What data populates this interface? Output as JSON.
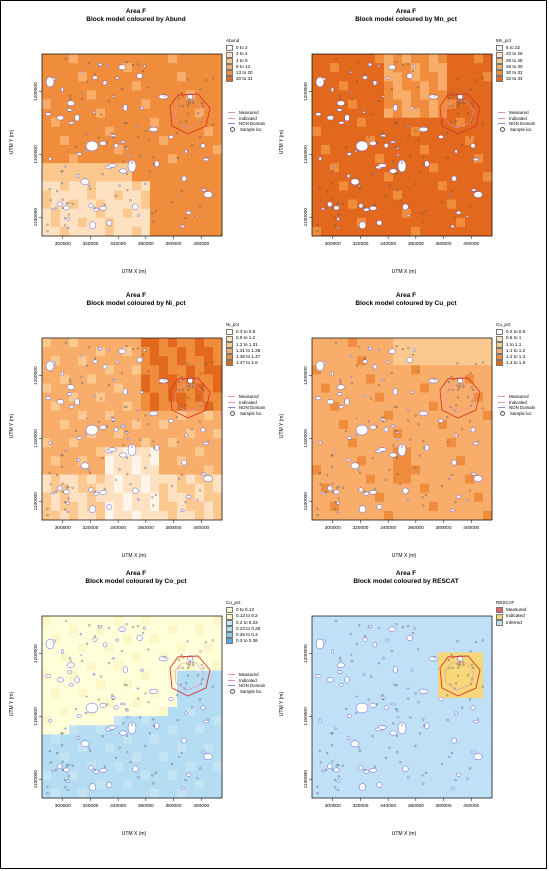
{
  "figure": {
    "area_title": "Area F",
    "overlay_legend": [
      {
        "label": "Measured",
        "kind": "line",
        "color": "#e98fb1"
      },
      {
        "label": "Indicated",
        "kind": "line",
        "color": "#e98fb1"
      },
      {
        "label": "NON Domain",
        "kind": "line",
        "color": "#8a8ad8"
      },
      {
        "label": "Sample loc",
        "kind": "point",
        "color": "#555555"
      }
    ]
  },
  "chart_data": [
    {
      "type": "heatmap",
      "title": "Area F",
      "subtitle": "Block model coloured by Abund",
      "xlabel": "UTM X (m)",
      "ylabel": "UTM Y (m)",
      "xticks": [
        "300000",
        "320000",
        "340000",
        "360000",
        "380000",
        "400000"
      ],
      "yticks": [
        "1100000",
        "1150000",
        "1200000"
      ],
      "legend_title": "Abund",
      "legend_position": "right",
      "classes": [
        {
          "label": "0 to 2",
          "color": "#fff5eb"
        },
        {
          "label": "2 to 4",
          "color": "#fde1c1"
        },
        {
          "label": "4 to 8",
          "color": "#fbc98f"
        },
        {
          "label": "8 to 13",
          "color": "#f8ad6b"
        },
        {
          "label": "13 to 20",
          "color": "#f08d3c"
        },
        {
          "label": "20 to 31",
          "color": "#e1681d"
        }
      ],
      "show_overlay_legend": true,
      "show_points": true
    },
    {
      "type": "heatmap",
      "title": "Area F",
      "subtitle": "Block model coloured by Mn_pct",
      "xlabel": "UTM X (m)",
      "ylabel": "UTM Y (m)",
      "xticks": [
        "300000",
        "320000",
        "340000",
        "360000",
        "380000",
        "400000"
      ],
      "yticks": [
        "1100000",
        "1150000",
        "1200000"
      ],
      "legend_title": "Mn_pct",
      "legend_position": "right",
      "classes": [
        {
          "label": "6 to 22",
          "color": "#fff5eb"
        },
        {
          "label": "22 to 26",
          "color": "#fde1c1"
        },
        {
          "label": "26 to 28",
          "color": "#fbc98f"
        },
        {
          "label": "28 to 30",
          "color": "#f8ad6b"
        },
        {
          "label": "30 to 32",
          "color": "#f08d3c"
        },
        {
          "label": "32 to 34",
          "color": "#e1681d"
        }
      ],
      "show_overlay_legend": true,
      "show_points": true
    },
    {
      "type": "heatmap",
      "title": "Area F",
      "subtitle": "Block model coloured by Ni_pct",
      "xlabel": "UTM X (m)",
      "ylabel": "UTM Y (m)",
      "xticks": [
        "300000",
        "320000",
        "340000",
        "360000",
        "380000",
        "400000"
      ],
      "yticks": [
        "1100000",
        "1150000",
        "1200000"
      ],
      "legend_title": "Ni_pct",
      "legend_position": "right",
      "classes": [
        {
          "label": "0.3 to 0.9",
          "color": "#fff5eb"
        },
        {
          "label": "0.9 to 1.2",
          "color": "#fde1c1"
        },
        {
          "label": "1.2 to 1.31",
          "color": "#fbc98f"
        },
        {
          "label": "1.31 to 1.38",
          "color": "#f8ad6b"
        },
        {
          "label": "1.38 to 1.47",
          "color": "#f08d3c"
        },
        {
          "label": "1.47 to 1.6",
          "color": "#e1681d"
        }
      ],
      "show_overlay_legend": true,
      "show_points": true
    },
    {
      "type": "heatmap",
      "title": "Area F",
      "subtitle": "Block model coloured by Cu_pct",
      "xlabel": "UTM X (m)",
      "ylabel": "UTM Y (m)",
      "xticks": [
        "300000",
        "320000",
        "340000",
        "360000",
        "380000",
        "400000"
      ],
      "yticks": [
        "1100000",
        "1150000",
        "1200000"
      ],
      "legend_title": "Cu_pct",
      "legend_position": "right",
      "classes": [
        {
          "label": "0.2 to 0.6",
          "color": "#fff5eb"
        },
        {
          "label": "0.6 to 1",
          "color": "#fde1c1"
        },
        {
          "label": "1 to 1.1",
          "color": "#fbc98f"
        },
        {
          "label": "1.1 to 1.2",
          "color": "#f8ad6b"
        },
        {
          "label": "1.2 to 1.3",
          "color": "#f08d3c"
        },
        {
          "label": "1.3 to 1.6",
          "color": "#e1681d"
        }
      ],
      "show_overlay_legend": true,
      "show_points": true
    },
    {
      "type": "heatmap",
      "title": "Area F",
      "subtitle": "Block model coloured by Co_pct",
      "xlabel": "UTM X (m)",
      "ylabel": "UTM Y (m)",
      "xticks": [
        "300000",
        "320000",
        "340000",
        "360000",
        "380000",
        "400000"
      ],
      "yticks": [
        "1100000",
        "1150000",
        "1200000"
      ],
      "legend_title": "Co_pct",
      "legend_position": "right",
      "classes": [
        {
          "label": "0 to 0.13",
          "color": "#ffffd9"
        },
        {
          "label": "0.13 to 0.2",
          "color": "#fdf6c6"
        },
        {
          "label": "0.2 to 0.23",
          "color": "#c4e4f4"
        },
        {
          "label": "0.23 to 0.26",
          "color": "#b4dcf2"
        },
        {
          "label": "0.26 to 0.3",
          "color": "#8ec8eb"
        },
        {
          "label": "0.3 to 0.36",
          "color": "#5aa9dd"
        }
      ],
      "show_overlay_legend": true,
      "show_points": true
    },
    {
      "type": "heatmap",
      "title": "Area F",
      "subtitle": "Block model coloured by RESCAT",
      "xlabel": "UTM X (m)",
      "ylabel": "UTM Y (m)",
      "xticks": [
        "300000",
        "320000",
        "340000",
        "360000",
        "380000",
        "400000"
      ],
      "yticks": [
        "1100000",
        "1150000",
        "1200000"
      ],
      "legend_title": "RESCAT",
      "legend_position": "right",
      "classes": [
        {
          "label": "Measured",
          "color": "#e8605a"
        },
        {
          "label": "Indicated",
          "color": "#f6d77a"
        },
        {
          "label": "Inferred",
          "color": "#bfe0f6"
        }
      ],
      "show_overlay_legend": false,
      "show_points": true
    }
  ]
}
